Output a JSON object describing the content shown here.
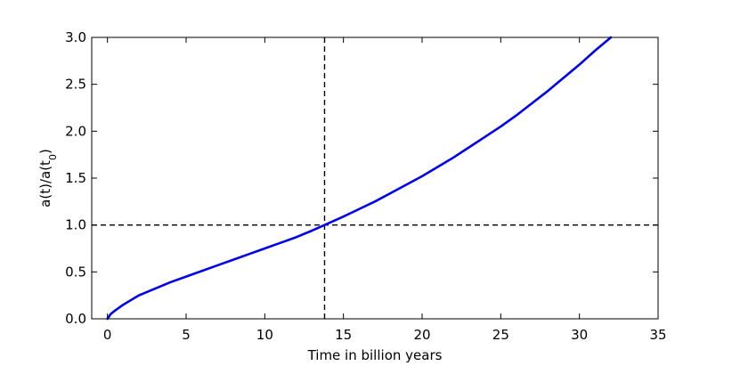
{
  "chart_data": {
    "type": "line",
    "xlabel": "Time in billion years",
    "ylabel": "a(t)/a(t0)",
    "ylabel_base": "a(t)/a(t",
    "ylabel_sub": "0",
    "ylabel_tail": ")",
    "xlim": [
      -1,
      35
    ],
    "ylim": [
      0.0,
      3.0
    ],
    "xticks": [
      0,
      5,
      10,
      15,
      20,
      25,
      30,
      35
    ],
    "xtick_labels": [
      "0",
      "5",
      "10",
      "15",
      "20",
      "25",
      "30",
      "35"
    ],
    "yticks": [
      0.0,
      0.5,
      1.0,
      1.5,
      2.0,
      2.5,
      3.0
    ],
    "ytick_labels": [
      "0.0",
      "0.5",
      "1.0",
      "1.5",
      "2.0",
      "2.5",
      "3.0"
    ],
    "grid": false,
    "reference_lines": {
      "vertical_x": 13.8,
      "horizontal_y": 1.0,
      "style": "dashed"
    },
    "series": [
      {
        "color": "#0000ee",
        "x": [
          0.0,
          0.2,
          0.5,
          1,
          1.5,
          2,
          3,
          4,
          5,
          6,
          7,
          8,
          9,
          10,
          11,
          12,
          13,
          13.8,
          15,
          16,
          17,
          18,
          19,
          20,
          21,
          22,
          23,
          24,
          25,
          26,
          27,
          28,
          29,
          30,
          31,
          32
        ],
        "y": [
          0.0,
          0.05,
          0.09,
          0.15,
          0.2,
          0.25,
          0.32,
          0.39,
          0.45,
          0.51,
          0.57,
          0.63,
          0.69,
          0.75,
          0.81,
          0.87,
          0.94,
          1.0,
          1.09,
          1.17,
          1.25,
          1.34,
          1.43,
          1.52,
          1.62,
          1.72,
          1.83,
          1.94,
          2.05,
          2.17,
          2.3,
          2.43,
          2.57,
          2.71,
          2.86,
          3.0
        ]
      }
    ]
  },
  "colors": {
    "line": "#0000ee",
    "axes": "#000000",
    "reference": "#000000"
  }
}
